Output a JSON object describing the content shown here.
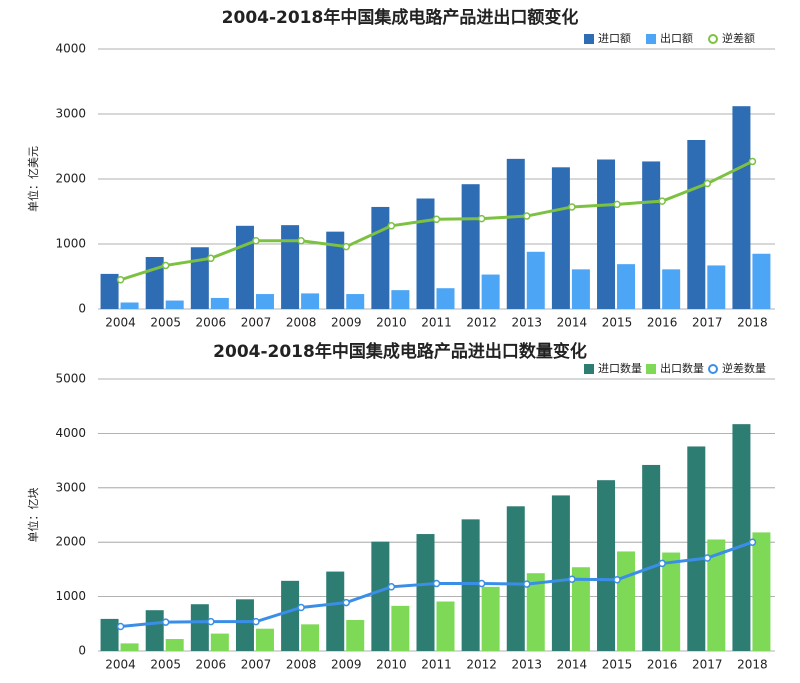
{
  "chart_data": [
    {
      "type": "bar",
      "title": "2004-2018年中国集成电路产品进出口额变化",
      "y_label": "单位：亿美元",
      "categories": [
        "2004",
        "2005",
        "2006",
        "2007",
        "2008",
        "2009",
        "2010",
        "2011",
        "2012",
        "2013",
        "2014",
        "2015",
        "2016",
        "2017",
        "2018"
      ],
      "series": [
        {
          "name": "进口额",
          "type": "bar",
          "color": "#2e6db4",
          "values": [
            540,
            800,
            950,
            1280,
            1290,
            1190,
            1570,
            1700,
            1920,
            2310,
            2180,
            2300,
            2270,
            2600,
            3120
          ]
        },
        {
          "name": "出口额",
          "type": "bar",
          "color": "#4da6f5",
          "values": [
            100,
            130,
            170,
            230,
            240,
            230,
            290,
            320,
            530,
            880,
            610,
            690,
            610,
            670,
            850
          ]
        },
        {
          "name": "逆差额",
          "type": "line",
          "color": "#7dc142",
          "values": [
            450,
            670,
            780,
            1050,
            1050,
            960,
            1280,
            1380,
            1390,
            1430,
            1570,
            1610,
            1660,
            1930,
            2270
          ]
        }
      ],
      "ylim": [
        0,
        4000
      ],
      "yticks": [
        0,
        1000,
        2000,
        3000,
        4000
      ],
      "grid": true,
      "legend": "top-right"
    },
    {
      "type": "bar",
      "title": "2004-2018年中国集成电路产品进出口数量变化",
      "y_label": "单位：亿块",
      "categories": [
        "2004",
        "2005",
        "2006",
        "2007",
        "2008",
        "2009",
        "2010",
        "2011",
        "2012",
        "2013",
        "2014",
        "2015",
        "2016",
        "2017",
        "2018"
      ],
      "series": [
        {
          "name": "进口数量",
          "type": "bar",
          "color": "#2e7d73",
          "values": [
            590,
            750,
            860,
            950,
            1290,
            1460,
            2010,
            2150,
            2420,
            2660,
            2860,
            3140,
            3420,
            3760,
            4170
          ]
        },
        {
          "name": "出口数量",
          "type": "bar",
          "color": "#7ed957",
          "values": [
            140,
            220,
            320,
            410,
            490,
            570,
            830,
            910,
            1180,
            1430,
            1540,
            1830,
            1810,
            2050,
            2180
          ]
        },
        {
          "name": "逆差数量",
          "type": "line",
          "color": "#3b8ee8",
          "values": [
            450,
            530,
            540,
            540,
            800,
            890,
            1180,
            1240,
            1240,
            1230,
            1320,
            1310,
            1610,
            1710,
            2000
          ]
        }
      ],
      "ylim": [
        0,
        5000
      ],
      "yticks": [
        0,
        1000,
        2000,
        3000,
        4000,
        5000
      ],
      "grid": true,
      "legend": "top-right"
    }
  ]
}
